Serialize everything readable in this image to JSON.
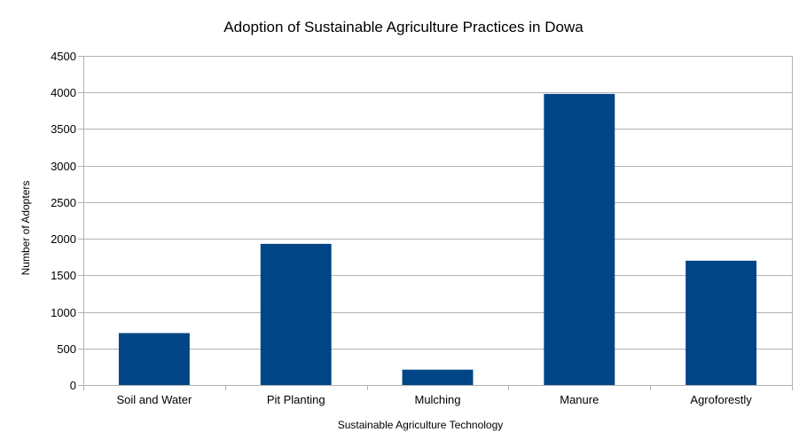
{
  "chart_data": {
    "type": "bar",
    "title": "Adoption of Sustainable Agriculture Practices in Dowa",
    "xlabel": "Sustainable Agriculture Technology",
    "ylabel": "Number of Adopters",
    "categories": [
      "Soil and Water",
      "Pit Planting",
      "Mulching",
      "Manure",
      "Agroforestly"
    ],
    "values": [
      710,
      1930,
      210,
      3980,
      1700
    ],
    "ylim": [
      0,
      4500
    ],
    "yticks": [
      0,
      500,
      1000,
      1500,
      2000,
      2500,
      3000,
      3500,
      4000,
      4500
    ],
    "grid": true,
    "legend": "none",
    "bar_color": "#004586"
  }
}
